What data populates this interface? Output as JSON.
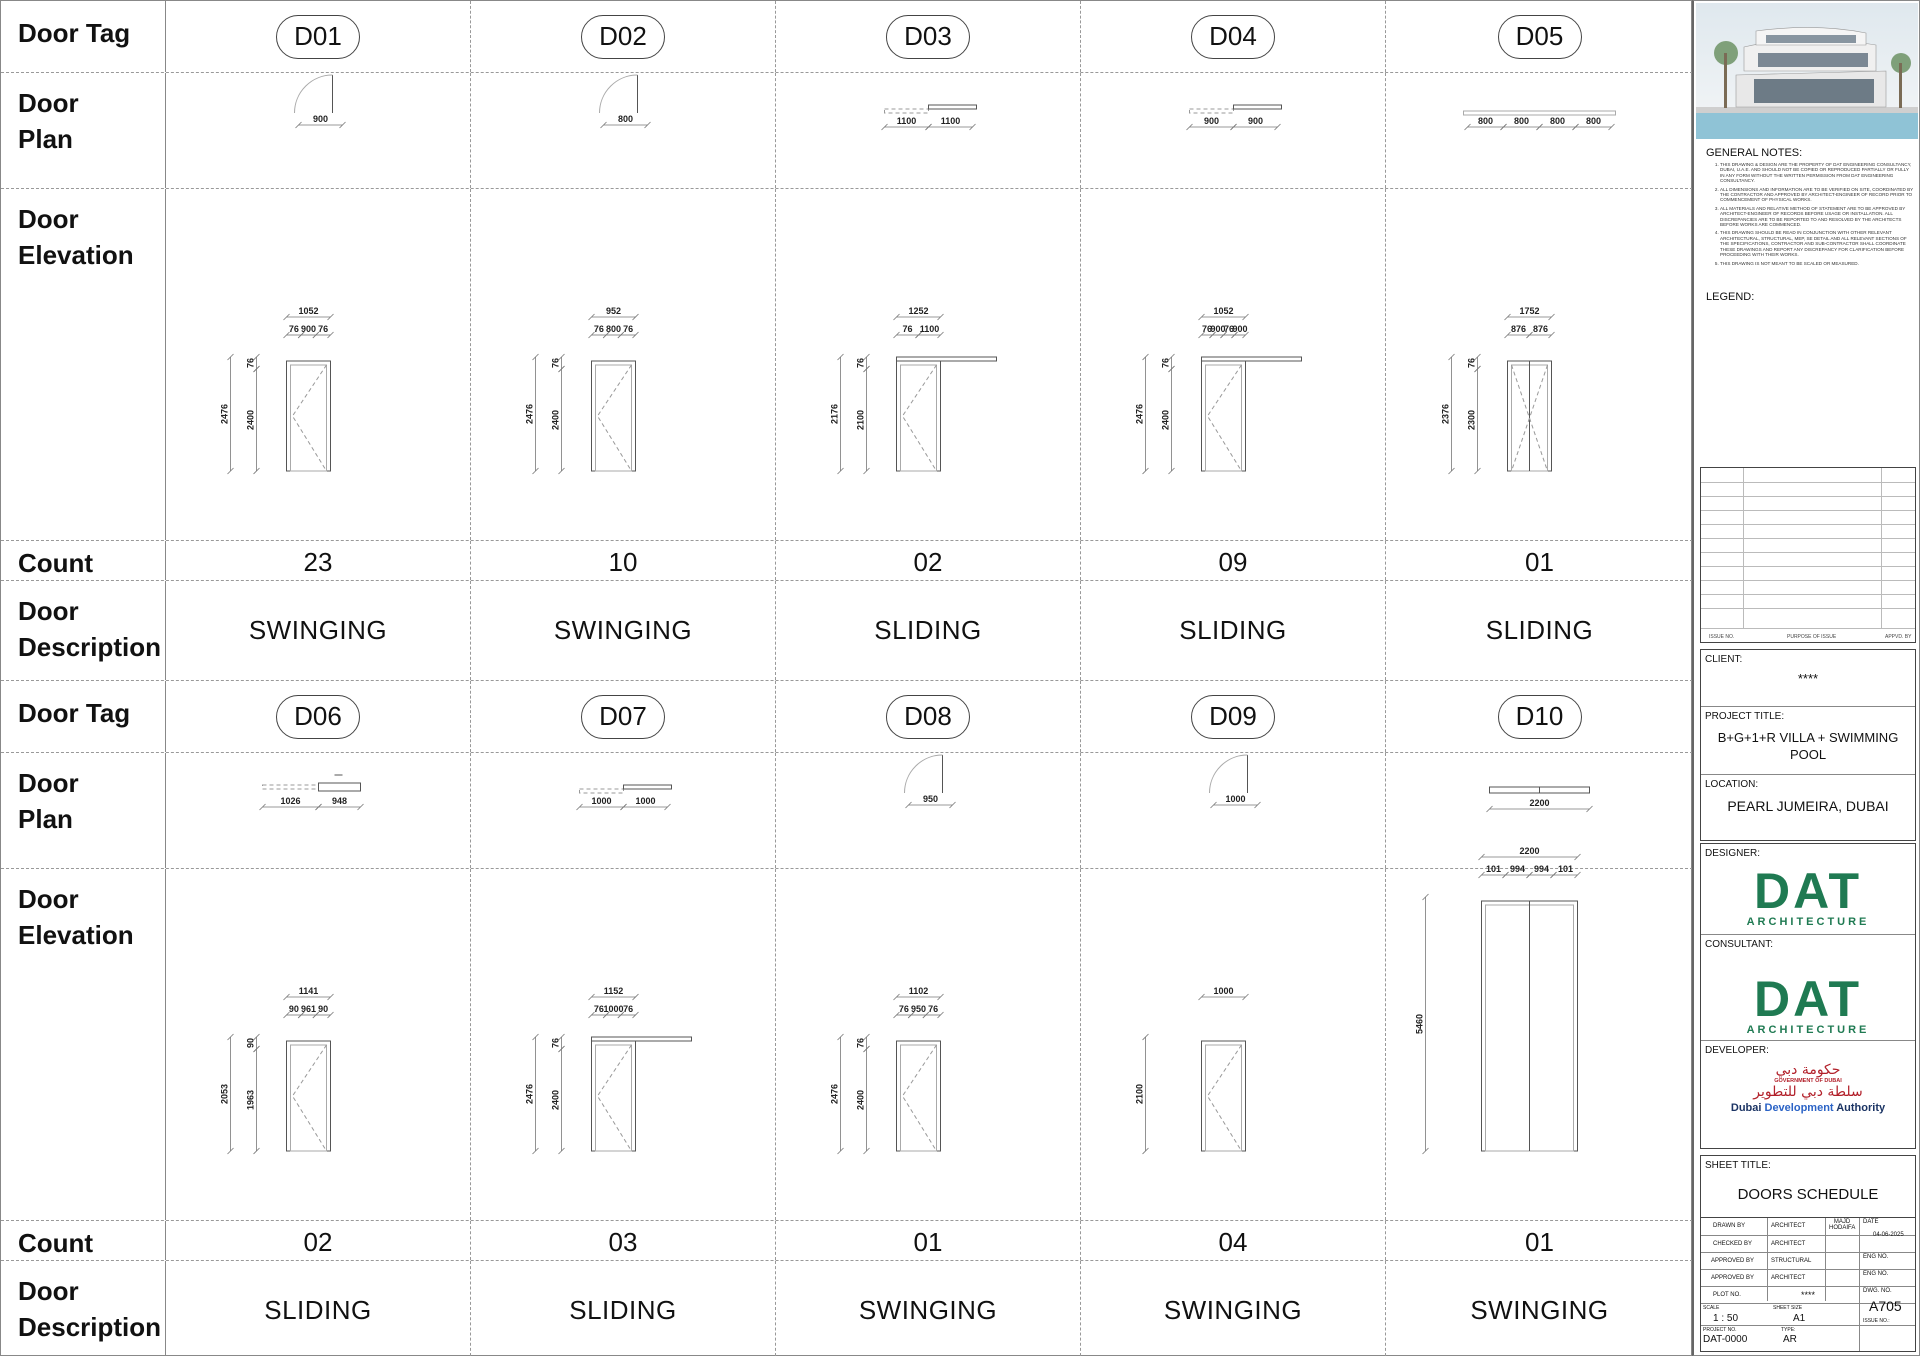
{
  "row_labels": {
    "tag": "Door Tag",
    "plan": "Door\nPlan",
    "elevation": "Door\nElevation",
    "count": "Count",
    "description": "Door\nDescription"
  },
  "doors": [
    {
      "tag": "D01",
      "count": "23",
      "description": "SWINGING",
      "plan_type": "swing",
      "plan_dims": [
        "900"
      ],
      "elev_dims_top": [
        "1052"
      ],
      "elev_dims_mid": [
        "76",
        "900",
        "76"
      ],
      "elev_dims_side": [
        "2476",
        "2400",
        "76"
      ]
    },
    {
      "tag": "D02",
      "count": "10",
      "description": "SWINGING",
      "plan_type": "swing",
      "plan_dims": [
        "800"
      ],
      "elev_dims_top": [
        "952"
      ],
      "elev_dims_mid": [
        "76",
        "800",
        "76"
      ],
      "elev_dims_side": [
        "2476",
        "2400",
        "76"
      ]
    },
    {
      "tag": "D03",
      "count": "02",
      "description": "SLIDING",
      "plan_type": "slide2",
      "plan_dims": [
        "1100",
        "1100"
      ],
      "elev_dims_top": [
        "1252"
      ],
      "elev_dims_mid": [
        "76",
        "1100"
      ],
      "elev_dims_side": [
        "2176",
        "2100",
        "76"
      ]
    },
    {
      "tag": "D04",
      "count": "09",
      "description": "SLIDING",
      "plan_type": "slide2",
      "plan_dims": [
        "900",
        "900"
      ],
      "elev_dims_top": [
        "1052"
      ],
      "elev_dims_mid": [
        "76",
        "900",
        "76",
        "900"
      ],
      "elev_dims_side": [
        "2476",
        "2400",
        "76"
      ]
    },
    {
      "tag": "D05",
      "count": "01",
      "description": "SLIDING",
      "plan_type": "slide4",
      "plan_dims": [
        "800",
        "800",
        "800",
        "800"
      ],
      "elev_dims_top": [
        "1752"
      ],
      "elev_dims_mid": [
        "876",
        "876"
      ],
      "elev_dims_side": [
        "2376",
        "2300",
        "76"
      ]
    },
    {
      "tag": "D06",
      "count": "02",
      "description": "SLIDING",
      "plan_type": "pocket",
      "plan_dims": [
        "1026",
        "948"
      ],
      "elev_dims_top": [
        "1141"
      ],
      "elev_dims_mid": [
        "90",
        "961",
        "90"
      ],
      "elev_dims_side": [
        "2053",
        "1963",
        "90"
      ]
    },
    {
      "tag": "D07",
      "count": "03",
      "description": "SLIDING",
      "plan_type": "slide2",
      "plan_dims": [
        "1000",
        "1000"
      ],
      "elev_dims_top": [
        "1152"
      ],
      "elev_dims_mid": [
        "76",
        "1000",
        "76"
      ],
      "elev_dims_side": [
        "2476",
        "2400",
        "76"
      ]
    },
    {
      "tag": "D08",
      "count": "01",
      "description": "SWINGING",
      "plan_type": "swing",
      "plan_dims": [
        "950"
      ],
      "elev_dims_top": [
        "1102"
      ],
      "elev_dims_mid": [
        "76",
        "950",
        "76"
      ],
      "elev_dims_side": [
        "2476",
        "2400",
        "76"
      ]
    },
    {
      "tag": "D09",
      "count": "04",
      "description": "SWINGING",
      "plan_type": "swing",
      "plan_dims": [
        "1000"
      ],
      "elev_dims_top": [
        "1000"
      ],
      "elev_dims_mid": [],
      "elev_dims_side": [
        "2100"
      ]
    },
    {
      "tag": "D10",
      "count": "01",
      "description": "SWINGING",
      "plan_type": "double",
      "plan_dims": [
        "2200"
      ],
      "elev_dims_top": [
        "2200"
      ],
      "elev_dims_mid": [
        "101",
        "994",
        "994",
        "101"
      ],
      "elev_dims_side": [
        "5460"
      ]
    }
  ],
  "titleblock": {
    "general_notes_title": "GENERAL NOTES:",
    "notes": [
      "THIS DRAWING & DESIGN ARE THE PROPERTY OF DAT ENGINEERING CONSULTANCY, DUBAI, U.A.E. AND SHOULD NOT BE COPIED OR REPRODUCED PARTIALLY OR FULLY IN ANY FORM WITHOUT THE WRITTEN PERMISSION FROM DAT ENGINEERING CONSULTANCY.",
      "ALL DIMENSIONS AND INFORMATION ARE TO BE VERIFIED ON SITE, COORDINATED BY THE CONTRACTOR AND APPROVED BY ARCHITECT-ENGINEER OF RECORD PRIOR TO COMMENCEMENT OF PHYSICAL WORKS.",
      "ALL MATERIALS AND RELATIVE METHOD OF STATEMENT ARE TO BE APPROVED BY ARCHITECT-ENGINEER OF RECORDS BEFORE USAGE OR INSTALLATION. ALL DISCREPANCIES ARE TO BE REPORTED TO AND RESOLVED BY THE ARCHITECTS BEFORE WORKS ARE COMMENCED.",
      "THIS DRAWING SHOULD BE READ IN CONJUNCTION WITH OTHER RELEVANT ARCHITECTURAL, STRUCTURAL, MEP, SE DETAIL AND ALL RELEVANT SECTIONS OF THE SPECIFICATIONS, CONTRACTOR AND SUB-CONTRACTOR SHALL COORDINATE THESE DRAWINGS AND REPORT ANY DISCREPANCY FOR CLARIFICATION BEFORE PROCEEDING WITH THEIR WORKS.",
      "THIS DRAWING IS NOT MEANT TO BE SCALED OR MEASURED."
    ],
    "legend_title": "LEGEND:",
    "rev_headers": [
      "ISSUE NO.",
      "PURPOSE OF ISSUE",
      "APPVD. BY"
    ],
    "client_label": "CLIENT:",
    "client_value": "****",
    "project_title_label": "PROJECT TITLE:",
    "project_title_value": "B+G+1+R VILLA + SWIMMING POOL",
    "location_label": "LOCATION:",
    "location_value": "PEARL JUMEIRA, DUBAI",
    "designer_label": "DESIGNER:",
    "consultant_label": "CONSULTANT:",
    "logo_big": "DAT",
    "logo_small": "ARCHITECTURE",
    "developer_label": "DEVELOPER:",
    "dev_arabic_top": "حكومة دبي",
    "dev_gov": "GOVERNMENT OF DUBAI",
    "dev_arabic": "سلطة دبي للتطوير",
    "dev_en_1": "Dubai",
    "dev_en_2": "Development",
    "dev_en_3": "Authority",
    "sheet_title_label": "SHEET TITLE:",
    "sheet_title_value": "DOORS SCHEDULE",
    "drawn_by": "DRAWN BY",
    "checked_by": "CHECKED BY",
    "approved_by": "APPROVED BY",
    "architect": "ARCHITECT",
    "structural": "STRUCTURAL",
    "drawer_name": "MAJD HODAIFA",
    "date_label": "DATE",
    "date_value": "04-06-2025",
    "eng_no": "ENG NO.",
    "plot_no_label": "PLOT NO.",
    "plot_no_value": "****",
    "dwg_no_label": "DWG. NO.",
    "dwg_no_value": "A705",
    "scale_label": "SCALE",
    "scale_value": "1 : 50",
    "sheet_size_label": "SHEET SIZE",
    "sheet_size_value": "A1",
    "issue_no": "ISSUE NO.:",
    "project_no_label": "PROJECT NO.",
    "project_no_value": "DAT-0000",
    "type_label": "TYPE:",
    "type_value": "AR"
  }
}
